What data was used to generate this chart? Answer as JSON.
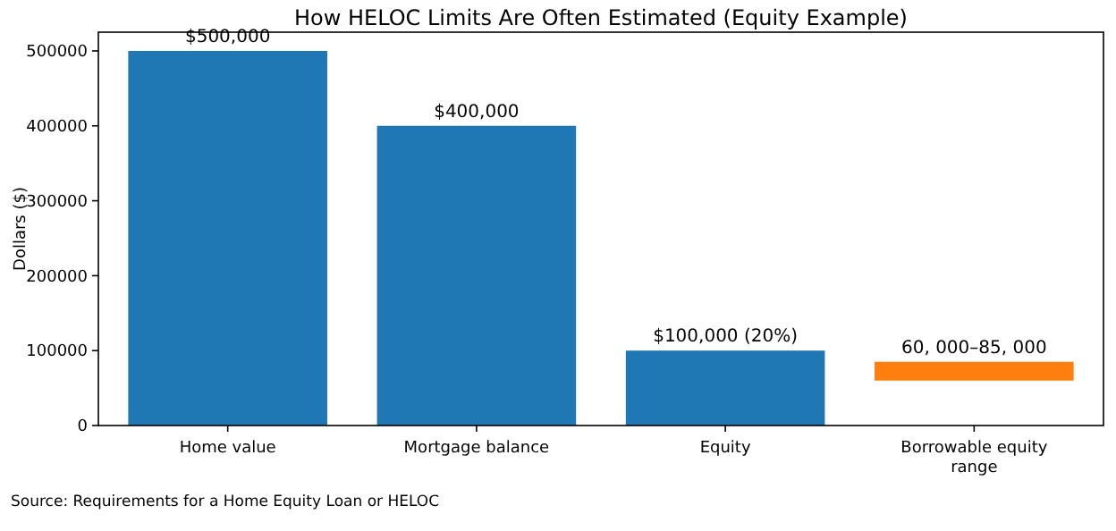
{
  "chart_data": {
    "type": "bar",
    "title": "How HELOC Limits Are Often Estimated (Equity Example)",
    "ylabel": "Dollars ($)",
    "categories": [
      "Home value",
      "Mortgage balance",
      "Equity",
      "Borrowable equity range"
    ],
    "values": [
      500000,
      400000,
      100000,
      25000
    ],
    "base": [
      0,
      0,
      0,
      60000
    ],
    "colors": [
      "#1f77b4",
      "#1f77b4",
      "#1f77b4",
      "#ff7f0e"
    ],
    "value_labels": [
      "$500,000",
      "$400,000",
      "$100,000 (20%)",
      null
    ],
    "ylim": [
      0,
      525000
    ],
    "yticks": [
      0,
      100000,
      200000,
      300000,
      400000,
      500000
    ],
    "grid": false,
    "annotations": [
      {
        "text": "60, 000–85, 000",
        "x": "Borrowable equity range",
        "y": 85000
      },
      "Source: Requirements for a Home Equity Loan or HELOC"
    ]
  }
}
